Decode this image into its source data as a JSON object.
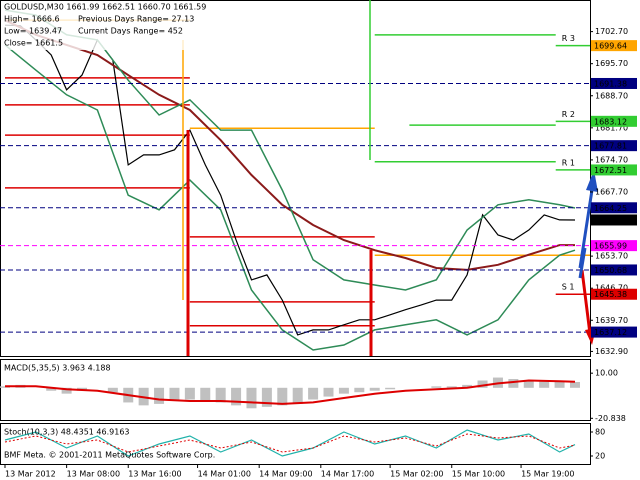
{
  "chart_data": [
    {
      "type": "line",
      "title": "GOLDUSD,M30  1661.99 1662.51 1660.70 1661.59",
      "annotations": [
        "High= 1666.6",
        "Previous Days Range= 27.13",
        "Low= 1639.47",
        "Current Days Range= 452",
        "Close= 1661.5"
      ],
      "xlim": [
        -1.3,
        151.9
      ],
      "ylim": [
        1631.9,
        1709.6
      ],
      "xticks": [
        {
          "value": 0,
          "label": "13 Mar 2012"
        },
        {
          "value": 16,
          "label": "13 Mar 08:00"
        },
        {
          "value": 32,
          "label": "13 Mar 16:00"
        },
        {
          "value": 50,
          "label": "14 Mar 01:00"
        },
        {
          "value": 66,
          "label": "14 Mar 09:00"
        },
        {
          "value": 82,
          "label": "14 Mar 17:00"
        },
        {
          "value": 100,
          "label": "15 Mar 02:00"
        },
        {
          "value": 116,
          "label": "15 Mar 10:00"
        },
        {
          "value": 134,
          "label": "15 Mar 19:00"
        }
      ],
      "yticks": [
        {
          "value": 1702.7,
          "label": "1702.70"
        },
        {
          "value": 1695.7,
          "label": "1695.70"
        },
        {
          "value": 1688.7,
          "label": "1688.70"
        },
        {
          "value": 1681.7,
          "label": "1681.70"
        },
        {
          "value": 1674.7,
          "label": "1674.70"
        },
        {
          "value": 1667.7,
          "label": "1667.70"
        },
        {
          "value": 1653.7,
          "label": "1653.70"
        },
        {
          "value": 1646.7,
          "label": "1646.70"
        },
        {
          "value": 1639.7,
          "label": "1639.70"
        },
        {
          "value": 1632.9,
          "label": "1632.90"
        }
      ],
      "series": [
        {
          "color": "#000000",
          "width": 1.2,
          "x": [
            0,
            4,
            8,
            12,
            16,
            20,
            24,
            28,
            32,
            36,
            40,
            44,
            48,
            52,
            56,
            60,
            64,
            68,
            72,
            76,
            80,
            84,
            88,
            92,
            96,
            100,
            104,
            108,
            112,
            116,
            120,
            124,
            128,
            132,
            136,
            140,
            144,
            148
          ],
          "values": [
            1704.1,
            1704,
            1700.9,
            1697.6,
            1690,
            1693.2,
            1700.9,
            1696.5,
            1673.6,
            1675.8,
            1675.8,
            1676.9,
            1681.2,
            1673.6,
            1667,
            1657.2,
            1648.5,
            1649.6,
            1644.1,
            1636.5,
            1637.6,
            1637.6,
            1638.7,
            1639.8,
            1639.8,
            1640.9,
            1642,
            1643,
            1644.1,
            1644.1,
            1649.6,
            1662.7,
            1658.3,
            1657.2,
            1659.4,
            1662.7,
            1661.6,
            1661.59
          ]
        },
        {
          "color": "#8b1a1a",
          "width": 2,
          "x": [
            0,
            8,
            16,
            24,
            32,
            40,
            48,
            56,
            64,
            72,
            80,
            88,
            96,
            104,
            112,
            120,
            128,
            136,
            144,
            148
          ],
          "values": [
            1705.2,
            1702,
            1699.8,
            1697.6,
            1693.2,
            1688.9,
            1685.6,
            1679,
            1671.4,
            1664.9,
            1660.5,
            1657.2,
            1655,
            1653.3,
            1651.1,
            1650.7,
            1651.8,
            1654,
            1656.1,
            1656.1
          ]
        },
        {
          "color": "#2e8b57",
          "width": 1.5,
          "x": [
            0,
            8,
            16,
            24,
            32,
            40,
            48,
            56,
            64,
            72,
            80,
            88,
            96,
            104,
            112,
            120,
            128,
            136,
            144,
            148
          ],
          "values": [
            1707.4,
            1706.3,
            1702,
            1700.9,
            1692.1,
            1684.5,
            1687.8,
            1681.2,
            1681.2,
            1668.1,
            1652.9,
            1648.5,
            1647.4,
            1646.3,
            1648.5,
            1659.4,
            1664.9,
            1666,
            1664.9,
            1664.2
          ]
        },
        {
          "color": "#2e8b57",
          "width": 1.5,
          "x": [
            0,
            8,
            16,
            24,
            32,
            40,
            48,
            56,
            64,
            72,
            80,
            88,
            96,
            104,
            112,
            120,
            128,
            136,
            144,
            148
          ],
          "values": [
            1699.8,
            1694.3,
            1688.9,
            1685.6,
            1667,
            1663.8,
            1670.3,
            1663.8,
            1646.3,
            1637.6,
            1633.2,
            1634.3,
            1637.6,
            1638.7,
            1639.8,
            1636.5,
            1639.8,
            1648.5,
            1653.9,
            1655
          ]
        }
      ],
      "pivots": [
        {
          "color": "#ffa500",
          "x": [
            0,
            48
          ],
          "value": 1705.2
        },
        {
          "color": "#ffa500",
          "x": [
            48,
            96
          ],
          "value": 1681.6
        },
        {
          "color": "#ffa500",
          "x": [
            96,
            151.9
          ],
          "value": 1653.9
        },
        {
          "color": "#dd0000",
          "x": [
            0,
            48
          ],
          "value": 1692.6
        },
        {
          "color": "#dd0000",
          "x": [
            0,
            48
          ],
          "value": 1686.7
        },
        {
          "color": "#dd0000",
          "x": [
            0,
            48
          ],
          "value": 1680.1
        },
        {
          "color": "#dd0000",
          "x": [
            0,
            48
          ],
          "value": 1668.6
        },
        {
          "color": "#dd0000",
          "x": [
            48,
            96
          ],
          "value": 1657.9
        },
        {
          "color": "#dd0000",
          "x": [
            48,
            96
          ],
          "value": 1643.7
        },
        {
          "color": "#dd0000",
          "x": [
            48,
            96
          ],
          "value": 1638.5
        },
        {
          "color": "#32cd32",
          "x": [
            96,
            143
          ],
          "value": 1702
        },
        {
          "color": "#32cd32",
          "x": [
            105,
            143
          ],
          "value": 1682.3
        },
        {
          "color": "#32cd32",
          "x": [
            96,
            143
          ],
          "value": 1674.3
        },
        {
          "color": "#32cd32",
          "x": [
            143,
            151.9
          ],
          "value": 1699.64,
          "label": "R 3"
        },
        {
          "color": "#32cd32",
          "x": [
            143,
            151.9
          ],
          "value": 1683.12,
          "label": "R 2"
        },
        {
          "color": "#32cd32",
          "x": [
            143,
            151.9
          ],
          "value": 1672.51,
          "label": "R 1"
        },
        {
          "color": "#dd0000",
          "x": [
            143,
            151.9
          ],
          "value": 1645.38,
          "label": "S 1"
        }
      ],
      "price_labels": [
        {
          "value": 1699.64,
          "color": "#ffa500"
        },
        {
          "value": 1691.38,
          "color": "#000080",
          "style": "dash"
        },
        {
          "value": 1683.12,
          "color": "#32cd32"
        },
        {
          "value": 1677.81,
          "color": "#000080",
          "style": "dash"
        },
        {
          "value": 1672.51,
          "color": "#32cd32"
        },
        {
          "value": 1664.25,
          "color": "#000080",
          "style": "dash"
        },
        {
          "value": 1661.59,
          "color": "#000000"
        },
        {
          "value": 1655.99,
          "color": "#ff00ff",
          "style": "dash"
        },
        {
          "value": 1650.68,
          "color": "#000080",
          "style": "dash"
        },
        {
          "value": 1645.38,
          "color": "#dd0000"
        },
        {
          "value": 1637.12,
          "color": "#000080",
          "style": "dash"
        }
      ]
    },
    {
      "type": "histogram-line",
      "title": "MACD(5,35,5) 3.963 4.188",
      "xlim": [
        -1.3,
        151.9
      ],
      "ylim": [
        -22,
        19
      ],
      "yticks": [
        {
          "value": 10,
          "label": "10.00"
        },
        -20.838
      ],
      "x": [
        0,
        4,
        8,
        12,
        16,
        20,
        24,
        28,
        32,
        36,
        40,
        44,
        48,
        52,
        56,
        60,
        64,
        68,
        72,
        76,
        80,
        84,
        88,
        92,
        96,
        100,
        104,
        108,
        112,
        116,
        120,
        124,
        128,
        132,
        136,
        140,
        144,
        148
      ],
      "values": [
        1,
        2,
        0,
        -2,
        -4,
        -2,
        0,
        -3,
        -10,
        -12,
        -11,
        -9,
        -8,
        -9,
        -10,
        -12,
        -14,
        -13,
        -12,
        -11,
        -8,
        -6,
        -4,
        -3,
        -2,
        -1,
        0,
        0,
        1,
        1,
        2,
        5,
        7,
        6,
        5,
        5,
        4,
        3.963
      ],
      "color": "#c0c0c0",
      "series": [
        {
          "color": "#dd0000",
          "width": 2,
          "x": [
            0,
            8,
            16,
            24,
            32,
            40,
            48,
            56,
            64,
            72,
            80,
            88,
            96,
            104,
            112,
            120,
            128,
            136,
            144,
            148
          ],
          "values": [
            1,
            1,
            -1,
            -2,
            -5,
            -8,
            -9,
            -9,
            -10,
            -11,
            -10,
            -7,
            -4,
            -2,
            -1,
            0,
            3,
            5,
            4.5,
            4.188
          ]
        }
      ]
    },
    {
      "type": "line",
      "title": "Stoch(10,3,3) 48.4351 46.9163",
      "xlim": [
        -1.3,
        151.9
      ],
      "ylim": [
        0,
        100
      ],
      "yticks": [
        80,
        20
      ],
      "annotations": [
        "BMF Meta. © 2001-2011 MetaQuotes Software Corp."
      ],
      "series": [
        {
          "color": "#20b2aa",
          "width": 1.2,
          "x": [
            0,
            8,
            16,
            24,
            32,
            40,
            48,
            56,
            64,
            72,
            80,
            88,
            96,
            104,
            112,
            120,
            128,
            136,
            144,
            148
          ],
          "values": [
            60,
            80,
            40,
            70,
            20,
            50,
            70,
            30,
            60,
            20,
            40,
            80,
            50,
            70,
            40,
            85,
            60,
            75,
            30,
            48.4351
          ]
        },
        {
          "color": "#dd0000",
          "width": 1,
          "dash": "2 2",
          "x": [
            0,
            8,
            16,
            24,
            32,
            40,
            48,
            56,
            64,
            72,
            80,
            88,
            96,
            104,
            112,
            120,
            128,
            136,
            144,
            148
          ],
          "values": [
            55,
            70,
            50,
            60,
            30,
            45,
            60,
            40,
            55,
            30,
            40,
            70,
            55,
            65,
            45,
            75,
            65,
            70,
            40,
            46.9163
          ]
        }
      ]
    }
  ]
}
